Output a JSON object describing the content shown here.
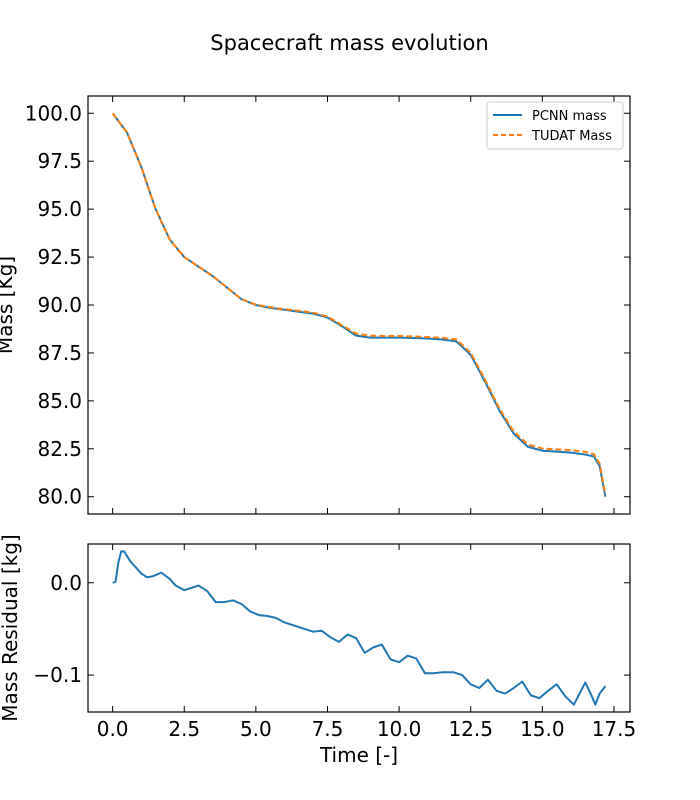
{
  "figure": {
    "title": "Spacecraft mass evolution"
  },
  "colors": {
    "pcnn": "#1f77b4",
    "tudat": "#ff7f0e"
  },
  "chart_data": [
    {
      "type": "line",
      "title": "Spacecraft mass evolution",
      "xlabel": "",
      "ylabel": "Mass [Kg]",
      "xlim": [
        -0.86,
        18.06
      ],
      "ylim": [
        79.1,
        100.9
      ],
      "grid": false,
      "legend": "top-right",
      "yticks": [
        80.0,
        82.5,
        85.0,
        87.5,
        90.0,
        92.5,
        95.0,
        97.5,
        100.0
      ],
      "ytick_labels": [
        "80.0",
        "82.5",
        "85.0",
        "87.5",
        "90.0",
        "92.5",
        "95.0",
        "97.5",
        "100.0"
      ],
      "xticks": [
        0,
        2.5,
        5,
        7.5,
        10,
        12.5,
        15,
        17.5
      ],
      "x": [
        0.0,
        0.5,
        1.0,
        1.5,
        2.0,
        2.5,
        3.0,
        3.5,
        4.0,
        4.5,
        5.0,
        5.5,
        6.0,
        6.5,
        7.0,
        7.5,
        8.0,
        8.5,
        9.0,
        9.5,
        10.0,
        10.5,
        11.0,
        11.5,
        12.0,
        12.5,
        13.0,
        13.5,
        14.0,
        14.5,
        15.0,
        15.5,
        16.0,
        16.5,
        16.8,
        17.0,
        17.2
      ],
      "series": [
        {
          "name": "PCNN mass",
          "style": "solid",
          "values": [
            100.0,
            99.0,
            97.2,
            95.0,
            93.4,
            92.5,
            92.0,
            91.5,
            90.9,
            90.3,
            90.0,
            89.85,
            89.75,
            89.65,
            89.55,
            89.35,
            88.9,
            88.4,
            88.3,
            88.3,
            88.3,
            88.28,
            88.25,
            88.2,
            88.1,
            87.4,
            86.0,
            84.5,
            83.3,
            82.6,
            82.4,
            82.35,
            82.3,
            82.2,
            82.1,
            81.6,
            80.0
          ]
        },
        {
          "name": "TUDAT Mass",
          "style": "dashed",
          "values": [
            100.0,
            99.0,
            97.2,
            95.0,
            93.4,
            92.5,
            92.0,
            91.5,
            90.9,
            90.3,
            90.02,
            89.88,
            89.78,
            89.7,
            89.6,
            89.4,
            88.95,
            88.5,
            88.4,
            88.38,
            88.38,
            88.36,
            88.33,
            88.29,
            88.2,
            87.5,
            86.1,
            84.6,
            83.4,
            82.72,
            82.52,
            82.47,
            82.43,
            82.34,
            82.22,
            81.73,
            80.1
          ]
        }
      ]
    },
    {
      "type": "line",
      "title": "",
      "xlabel": "Time [-]",
      "ylabel": "Mass Residual [kg]",
      "xlim": [
        -0.86,
        18.06
      ],
      "ylim": [
        -0.14,
        0.042
      ],
      "grid": false,
      "yticks": [
        0.0,
        -0.1
      ],
      "ytick_labels": [
        "0.0",
        "−0.1"
      ],
      "xticks": [
        0,
        2.5,
        5,
        7.5,
        10,
        12.5,
        15,
        17.5
      ],
      "xtick_labels": [
        "0.0",
        "2.5",
        "5.0",
        "7.5",
        "10.0",
        "12.5",
        "15.0",
        "17.5"
      ],
      "x": [
        0.0,
        0.1,
        0.2,
        0.3,
        0.4,
        0.6,
        0.8,
        1.0,
        1.2,
        1.4,
        1.7,
        2.0,
        2.2,
        2.5,
        2.8,
        3.0,
        3.3,
        3.6,
        3.9,
        4.2,
        4.5,
        4.8,
        5.1,
        5.4,
        5.7,
        6.0,
        6.3,
        6.7,
        7.0,
        7.3,
        7.6,
        7.9,
        8.2,
        8.5,
        8.8,
        9.1,
        9.4,
        9.7,
        10.0,
        10.3,
        10.6,
        10.9,
        11.2,
        11.5,
        11.9,
        12.2,
        12.5,
        12.8,
        13.1,
        13.4,
        13.7,
        14.0,
        14.3,
        14.6,
        14.9,
        15.2,
        15.5,
        15.8,
        16.1,
        16.3,
        16.5,
        16.7,
        16.85,
        17.0,
        17.2
      ],
      "series": [
        {
          "name": "",
          "style": "solid",
          "values": [
            0.0,
            0.001,
            0.022,
            0.034,
            0.034,
            0.024,
            0.017,
            0.01,
            0.006,
            0.007,
            0.011,
            0.004,
            -0.003,
            -0.008,
            -0.005,
            -0.003,
            -0.009,
            -0.021,
            -0.021,
            -0.019,
            -0.023,
            -0.031,
            -0.035,
            -0.036,
            -0.038,
            -0.043,
            -0.046,
            -0.05,
            -0.053,
            -0.052,
            -0.059,
            -0.064,
            -0.056,
            -0.06,
            -0.076,
            -0.07,
            -0.067,
            -0.083,
            -0.086,
            -0.079,
            -0.082,
            -0.098,
            -0.098,
            -0.097,
            -0.097,
            -0.1,
            -0.11,
            -0.114,
            -0.105,
            -0.117,
            -0.12,
            -0.114,
            -0.107,
            -0.122,
            -0.125,
            -0.117,
            -0.11,
            -0.123,
            -0.132,
            -0.12,
            -0.108,
            -0.121,
            -0.132,
            -0.12,
            -0.112
          ]
        }
      ]
    }
  ]
}
